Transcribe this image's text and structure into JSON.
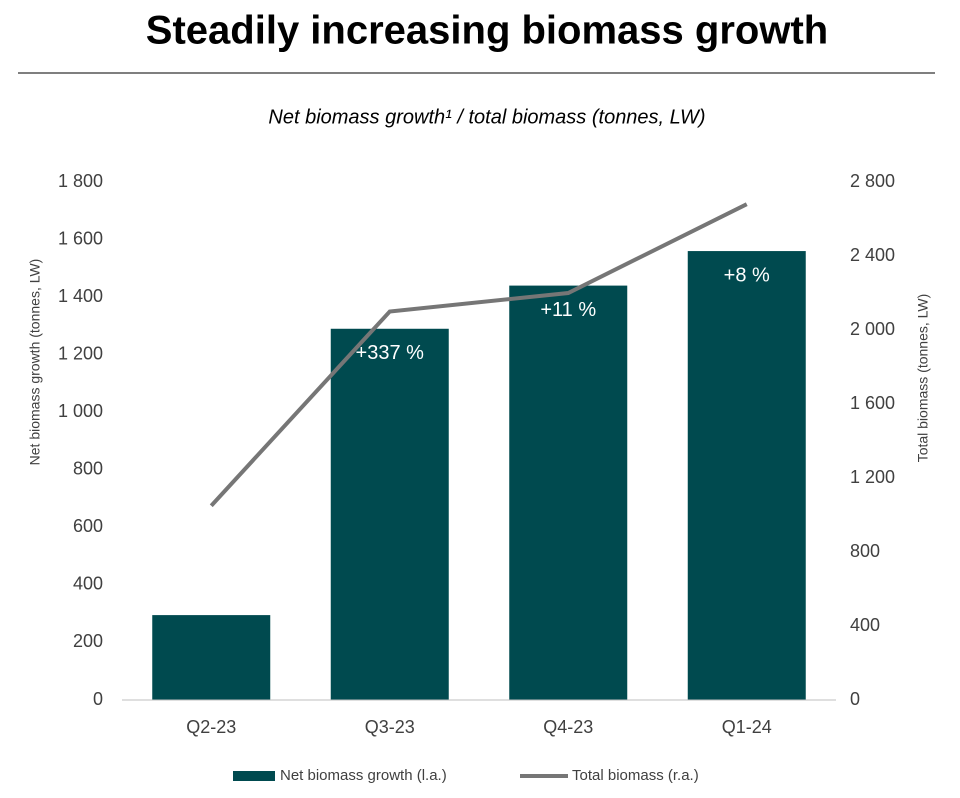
{
  "chart_data": {
    "type": "bar+line",
    "title": "Steadily increasing biomass growth",
    "subtitle": "Net biomass growth¹ / total biomass (tonnes, LW)",
    "y_label": "Net biomass growth (tonnes, LW)",
    "y2_label": "Total biomass (tonnes, LW)",
    "categories": [
      "Q2-23",
      "Q3-23",
      "Q4-23",
      "Q1-24"
    ],
    "series": [
      {
        "name": "Net biomass growth (l.a.)",
        "type": "bar",
        "color": "#004a4f",
        "values": [
          295,
          1290,
          1440,
          1560
        ]
      },
      {
        "name": "Total biomass (r.a.)",
        "type": "line",
        "axis": "y2",
        "color": "#767676",
        "values": [
          1050,
          2100,
          2200,
          2680
        ]
      }
    ],
    "growth_labels": [
      null,
      "+337 %",
      "+11 %",
      "+8 %"
    ],
    "ylim": [
      0,
      1800
    ],
    "yticks": [
      0,
      200,
      400,
      600,
      800,
      {
        "value": 1000,
        "label": "1 000"
      },
      {
        "value": 1200,
        "label": "1 200"
      },
      {
        "value": 1400,
        "label": "1 400"
      },
      {
        "value": 1600,
        "label": "1 600"
      },
      {
        "value": 1800,
        "label": "1 800"
      }
    ],
    "y2lim": [
      0,
      2800
    ],
    "y2ticks": [
      0,
      400,
      800,
      {
        "value": 1200,
        "label": "1 200"
      },
      {
        "value": 1600,
        "label": "1 600"
      },
      {
        "value": 2000,
        "label": "2 000"
      },
      {
        "value": 2400,
        "label": "2 400"
      },
      {
        "value": 2800,
        "label": "2 800"
      }
    ],
    "grid": false,
    "legend": "bottom"
  }
}
